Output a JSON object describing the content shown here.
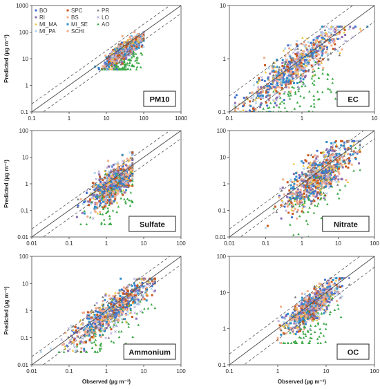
{
  "legend": [
    {
      "name": "BO",
      "color": "#3f6fd1",
      "marker": "circle"
    },
    {
      "name": "RI",
      "color": "#8a6db0",
      "marker": "square"
    },
    {
      "name": "MI_MA",
      "color": "#e8c23c",
      "marker": "triangle"
    },
    {
      "name": "MI_PA",
      "color": "#9ec9e6",
      "marker": "cross"
    },
    {
      "name": "SPC",
      "color": "#c8571e",
      "marker": "square"
    },
    {
      "name": "BS",
      "color": "#f3b08a",
      "marker": "square"
    },
    {
      "name": "MI_SE",
      "color": "#2f8fc7",
      "marker": "square"
    },
    {
      "name": "SCHI",
      "color": "#f2a78e",
      "marker": "circle"
    },
    {
      "name": "PR",
      "color": "#777777",
      "marker": "triangle"
    },
    {
      "name": "LO",
      "color": "#b0a4d4",
      "marker": "cross"
    },
    {
      "name": "AO",
      "color": "#3aa845",
      "marker": "triangle"
    }
  ],
  "chart_data": [
    {
      "type": "scatter",
      "label": "PM10",
      "xlim": [
        0.1,
        1000
      ],
      "ylim": [
        0.1,
        1000
      ],
      "xscale": "log",
      "yscale": "log",
      "xticks": [
        "0.1",
        "1",
        "10",
        "100",
        "1000"
      ],
      "yticks": [
        "0.1",
        "1",
        "10",
        "100",
        "1000"
      ],
      "ylabel": "Predicted (µg m⁻³)",
      "xlabel": "",
      "reference_lines": [
        "1:1",
        "2:1",
        "1:2"
      ],
      "cluster": {
        "x_range": [
          5,
          100
        ],
        "y_range": [
          4,
          100
        ],
        "center": [
          30,
          20
        ]
      }
    },
    {
      "type": "scatter",
      "label": "EC",
      "xlim": [
        0.1,
        10
      ],
      "ylim": [
        0.1,
        10
      ],
      "xscale": "log",
      "yscale": "log",
      "xticks": [
        "0.1",
        "1",
        "10"
      ],
      "yticks": [
        "0.1",
        "1",
        "10"
      ],
      "ylabel": "",
      "xlabel": "",
      "reference_lines": [
        "1:1",
        "2:1",
        "1:2"
      ],
      "cluster": {
        "x_range": [
          0.12,
          8
        ],
        "y_range": [
          0.1,
          4
        ],
        "center": [
          0.8,
          0.7
        ]
      }
    },
    {
      "type": "scatter",
      "label": "Sulfate",
      "xlim": [
        0.01,
        100
      ],
      "ylim": [
        0.01,
        100
      ],
      "xscale": "log",
      "yscale": "log",
      "xticks": [
        "0.01",
        "0.1",
        "1",
        "10",
        "100"
      ],
      "yticks": [
        "0.01",
        "0.1",
        "1",
        "10",
        "100"
      ],
      "ylabel": "Predicted (µg m⁻³)",
      "xlabel": "",
      "reference_lines": [
        "1:1",
        "2:1",
        "1:2"
      ],
      "cluster": {
        "x_range": [
          0.1,
          5
        ],
        "y_range": [
          0.03,
          15
        ],
        "center": [
          1.5,
          1
        ]
      }
    },
    {
      "type": "scatter",
      "label": "Nitrate",
      "xlim": [
        0.01,
        100
      ],
      "ylim": [
        0.01,
        100
      ],
      "xscale": "log",
      "yscale": "log",
      "xticks": [
        "0.01",
        "0.1",
        "1",
        "10",
        "100"
      ],
      "yticks": [
        "0.01",
        "0.1",
        "1",
        "10",
        "100"
      ],
      "ylabel": "",
      "xlabel": "",
      "reference_lines": [
        "1:1",
        "2:1",
        "1:2"
      ],
      "cluster": {
        "x_range": [
          0.1,
          40
        ],
        "y_range": [
          0.01,
          40
        ],
        "center": [
          3,
          2
        ]
      }
    },
    {
      "type": "scatter",
      "label": "Ammonium",
      "xlim": [
        0.01,
        100
      ],
      "ylim": [
        0.01,
        100
      ],
      "xscale": "log",
      "yscale": "log",
      "xticks": [
        "0.01",
        "0.1",
        "1",
        "10",
        "100"
      ],
      "yticks": [
        "0.01",
        "0.1",
        "1",
        "10",
        "100"
      ],
      "ylabel": "Predicted (µg m⁻³)",
      "xlabel": "Observed (µg m⁻³)",
      "reference_lines": [
        "1:1",
        "2:1",
        "1:2"
      ],
      "cluster": {
        "x_range": [
          0.015,
          20
        ],
        "y_range": [
          0.03,
          15
        ],
        "center": [
          1.5,
          1
        ]
      }
    },
    {
      "type": "scatter",
      "label": "OC",
      "xlim": [
        0.1,
        100
      ],
      "ylim": [
        0.1,
        100
      ],
      "xscale": "log",
      "yscale": "log",
      "xticks": [
        "0.1",
        "1",
        "10",
        "100"
      ],
      "yticks": [
        "0.1",
        "1",
        "10",
        "100"
      ],
      "ylabel": "",
      "xlabel": "Observed (µg m⁻³)",
      "reference_lines": [
        "1:1",
        "2:1",
        "1:2"
      ],
      "cluster": {
        "x_range": [
          1,
          30
        ],
        "y_range": [
          0.4,
          25
        ],
        "center": [
          5,
          4
        ]
      }
    }
  ]
}
